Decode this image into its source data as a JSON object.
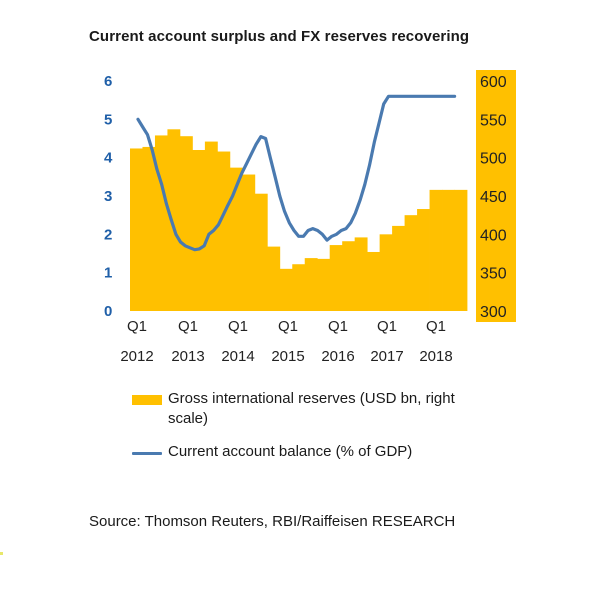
{
  "title": "Current account surplus and FX reserves recovering",
  "source": "Source: Thomson Reuters, RBI/Raiffeisen RESEARCH",
  "chart_data": {
    "type": "bar+line",
    "title": "Current account surplus and FX reserves recovering",
    "x_tick_labels": [
      {
        "q": "Q1",
        "year": "2012"
      },
      {
        "q": "Q1",
        "year": "2013"
      },
      {
        "q": "Q1",
        "year": "2014"
      },
      {
        "q": "Q1",
        "year": "2015"
      },
      {
        "q": "Q1",
        "year": "2016"
      },
      {
        "q": "Q1",
        "year": "2017"
      },
      {
        "q": "Q1",
        "year": "2018"
      }
    ],
    "left_axis": {
      "ylim": [
        0,
        6
      ],
      "ticks": [
        "0",
        "1",
        "2",
        "3",
        "4",
        "5",
        "6"
      ]
    },
    "right_axis": {
      "ylim": [
        300,
        600
      ],
      "ticks": [
        "300",
        "350",
        "400",
        "450",
        "500",
        "550",
        "600"
      ]
    },
    "legend": [
      {
        "label": "Gross international reserves (USD bn, right scale)",
        "kind": "bar"
      },
      {
        "label": "Current account balance (% of GDP)",
        "kind": "line"
      }
    ],
    "colors": {
      "bars": "#ffc000",
      "line": "#4a7ab0",
      "left_tick": "#1f5fa8",
      "right_tick_bg": "#ffc000"
    },
    "bars": {
      "name": "Gross international reserves (USD bn, right scale)",
      "axis": "right",
      "values": [
        512,
        514,
        529,
        537,
        528,
        510,
        521,
        508,
        487,
        478,
        453,
        384,
        355,
        361,
        369,
        368,
        386,
        391,
        396,
        377,
        400,
        411,
        425,
        433,
        458,
        458,
        458
      ]
    },
    "line": {
      "name": "Current account balance (% of GDP)",
      "axis": "left",
      "x": [
        0,
        0.33,
        0.67,
        1,
        1.33,
        1.67,
        2,
        2.33,
        2.67,
        3,
        3.33,
        3.67,
        4,
        4.33,
        4.67,
        5,
        5.33,
        5.67,
        6,
        6.33,
        6.67,
        7,
        7.33,
        7.67,
        8,
        8.33,
        8.67,
        9,
        9.33,
        9.67,
        10,
        10.33,
        10.67,
        11,
        11.33,
        11.67,
        12,
        12.33,
        12.67,
        13,
        13.33,
        13.67,
        14,
        14.33,
        14.67,
        15,
        15.33,
        15.67,
        16,
        16.33,
        16.67,
        17,
        17.33,
        17.67,
        18,
        18.33,
        18.67,
        19,
        19.33,
        19.67,
        20,
        20.33,
        20.67,
        21,
        21.33,
        21.67,
        22,
        22.33,
        22.67,
        23,
        23.33,
        23.67,
        24,
        24.33,
        24.67,
        25,
        25.33,
        25.67,
        26
      ],
      "values": [
        5.0,
        4.8,
        4.6,
        4.2,
        3.7,
        3.3,
        2.8,
        2.4,
        2.0,
        1.8,
        1.7,
        1.65,
        1.6,
        1.62,
        1.7,
        2.0,
        2.1,
        2.25,
        2.5,
        2.75,
        3.0,
        3.3,
        3.6,
        3.85,
        4.1,
        4.35,
        4.55,
        4.5,
        4.0,
        3.5,
        3.0,
        2.6,
        2.3,
        2.1,
        1.95,
        1.95,
        2.1,
        2.15,
        2.1,
        2.0,
        1.85,
        1.95,
        2.0,
        2.1,
        2.15,
        2.3,
        2.55,
        2.9,
        3.3,
        3.8,
        4.4,
        4.9,
        5.4,
        5.6,
        5.6,
        5.6,
        5.6,
        5.6,
        5.6,
        5.6,
        5.6,
        5.6,
        5.6,
        5.6,
        5.6,
        5.6,
        5.6,
        5.6,
        5.6,
        5.6,
        5.6,
        5.6,
        5.6,
        5.6,
        5.6,
        5.6,
        5.6,
        5.6,
        5.6
      ]
    }
  }
}
